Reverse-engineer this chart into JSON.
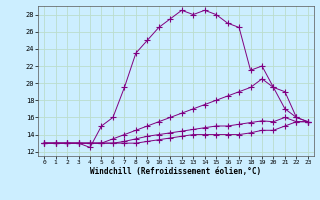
{
  "title": "",
  "xlabel": "Windchill (Refroidissement éolien,°C)",
  "bg_color": "#cceeff",
  "line_color": "#800080",
  "grid_color": "#aaddcc",
  "xlim": [
    -0.5,
    23.5
  ],
  "ylim": [
    11.5,
    29.0
  ],
  "yticks": [
    12,
    14,
    16,
    18,
    20,
    22,
    24,
    26,
    28
  ],
  "xticks": [
    0,
    1,
    2,
    3,
    4,
    5,
    6,
    7,
    8,
    9,
    10,
    11,
    12,
    13,
    14,
    15,
    16,
    17,
    18,
    19,
    20,
    21,
    22,
    23
  ],
  "series": [
    {
      "x": [
        0,
        1,
        2,
        3,
        4,
        5,
        6,
        7,
        8,
        9,
        10,
        11,
        12,
        13,
        14,
        15,
        16,
        17,
        18,
        19,
        20,
        21,
        22,
        23
      ],
      "y": [
        13,
        13,
        13,
        13,
        12.5,
        15,
        16,
        19.5,
        23.5,
        25,
        26.5,
        27.5,
        28.5,
        28,
        28.5,
        28,
        27,
        26.5,
        21.5,
        22,
        19.5,
        17,
        16,
        15.5
      ]
    },
    {
      "x": [
        0,
        1,
        2,
        3,
        4,
        5,
        6,
        7,
        8,
        9,
        10,
        11,
        12,
        13,
        14,
        15,
        16,
        17,
        18,
        19,
        20,
        21,
        22,
        23
      ],
      "y": [
        13,
        13,
        13,
        13,
        13,
        13,
        13.5,
        14,
        14.5,
        15,
        15.5,
        16,
        16.5,
        17,
        17.5,
        18,
        18.5,
        19,
        19.5,
        20.5,
        19.5,
        19,
        16,
        15.5
      ]
    },
    {
      "x": [
        0,
        1,
        2,
        3,
        4,
        5,
        6,
        7,
        8,
        9,
        10,
        11,
        12,
        13,
        14,
        15,
        16,
        17,
        18,
        19,
        20,
        21,
        22,
        23
      ],
      "y": [
        13,
        13,
        13,
        13,
        13,
        13,
        13,
        13.2,
        13.5,
        13.8,
        14,
        14.2,
        14.4,
        14.6,
        14.8,
        15,
        15,
        15.2,
        15.4,
        15.6,
        15.5,
        16,
        15.5,
        15.5
      ]
    },
    {
      "x": [
        0,
        1,
        2,
        3,
        4,
        5,
        6,
        7,
        8,
        9,
        10,
        11,
        12,
        13,
        14,
        15,
        16,
        17,
        18,
        19,
        20,
        21,
        22,
        23
      ],
      "y": [
        13,
        13,
        13,
        13,
        13,
        13,
        13,
        13,
        13,
        13.2,
        13.4,
        13.6,
        13.8,
        14,
        14,
        14,
        14,
        14,
        14.2,
        14.5,
        14.5,
        15,
        15.5,
        15.5
      ]
    }
  ]
}
